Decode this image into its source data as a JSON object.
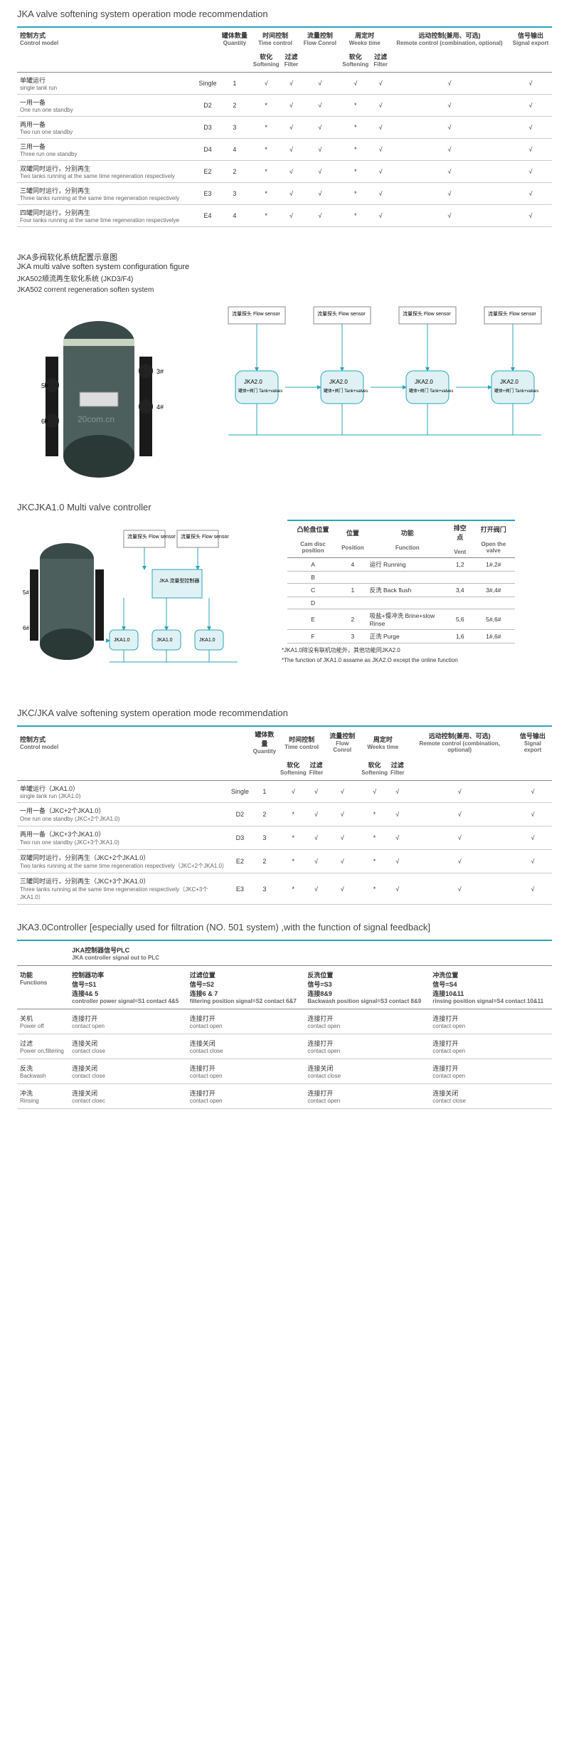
{
  "section1": {
    "title": "JKA valve softening system operation mode recommendation",
    "headers": {
      "control_cn": "控制方式",
      "control_en": "Control model",
      "code": "",
      "qty_cn": "罐体数量",
      "qty_en": "Quantity",
      "time_cn": "时间控制",
      "time_en": "Time control",
      "time_soft_cn": "软化",
      "time_soft_en": "Softening",
      "time_filt_cn": "过滤",
      "time_filt_en": "Filter",
      "flow_cn": "流量控制",
      "flow_en": "Flow Conrol",
      "week_cn": "周定时",
      "week_en": "Weeks time",
      "week_soft_cn": "软化",
      "week_soft_en": "Softening",
      "week_filt_cn": "过滤",
      "week_filt_en": "Filter",
      "remote_cn": "远动控制(兼用、可选)",
      "remote_en": "Remote control (combination, optional)",
      "signal_cn": "信号输出",
      "signal_en": "Signal export"
    },
    "rows": [
      {
        "cn": "单罐运行",
        "en": "single tank run",
        "code": "Single",
        "qty": "1",
        "ts": "√",
        "tf": "√",
        "fc": "√",
        "ws": "√",
        "wf": "√",
        "rc": "√",
        "sig": "√"
      },
      {
        "cn": "一用一备",
        "en": "One run one standby",
        "code": "D2",
        "qty": "2",
        "ts": "*",
        "tf": "√",
        "fc": "√",
        "ws": "*",
        "wf": "√",
        "rc": "√",
        "sig": "√"
      },
      {
        "cn": "两用一备",
        "en": "Two run one standby",
        "code": "D3",
        "qty": "3",
        "ts": "*",
        "tf": "√",
        "fc": "√",
        "ws": "*",
        "wf": "√",
        "rc": "√",
        "sig": "√"
      },
      {
        "cn": "三用一备",
        "en": "Three run one standby",
        "code": "D4",
        "qty": "4",
        "ts": "*",
        "tf": "√",
        "fc": "√",
        "ws": "*",
        "wf": "√",
        "rc": "√",
        "sig": "√"
      },
      {
        "cn": "双罐同时运行，分别再生",
        "en": "Two tanks running at the same time regeneration respectively",
        "code": "E2",
        "qty": "2",
        "ts": "*",
        "tf": "√",
        "fc": "√",
        "ws": "*",
        "wf": "√",
        "rc": "√",
        "sig": "√"
      },
      {
        "cn": "三罐同时运行，分别再生",
        "en": "Three tanks running at the same time regeneration respectively",
        "code": "E3",
        "qty": "3",
        "ts": "*",
        "tf": "√",
        "fc": "√",
        "ws": "*",
        "wf": "√",
        "rc": "√",
        "sig": "√"
      },
      {
        "cn": "四罐同时运行，分别再生",
        "en": "Four tanks running at the same time regeneration respectivelye",
        "code": "E4",
        "qty": "4",
        "ts": "*",
        "tf": "√",
        "fc": "√",
        "ws": "*",
        "wf": "√",
        "rc": "√",
        "sig": "√"
      }
    ]
  },
  "section2": {
    "title_cn": "JKA多阀软化系统配置示意图",
    "title_en": "JKA multi valve soften system configuration figure",
    "sub1_cn": "JKA502顺流再生软化系统 (JKD3/F4)",
    "sub1_en": "JKA502 corrent regeneration soften system",
    "flow_sensor": "流量探头 Flow sensor",
    "watermark": "20com.cn",
    "tank_label": "罐体+阀门 Tank+valves",
    "jka": [
      "JKA2.0",
      "JKA2.0",
      "JKA2.0",
      "JKA2.0"
    ]
  },
  "section3": {
    "title": "JKCJKA1.0 Multi valve  controller",
    "flow_sensor": "流量探头 Flow sensor",
    "ctrl_box": "JKA 流量型控制器",
    "cam_headers": {
      "pos_cn": "凸轮盘位置",
      "pos_en": "Cam disc position",
      "p_cn": "位置",
      "p_en": "Position",
      "fn_cn": "功能",
      "fn_en": "Function",
      "vent_cn": "排空点",
      "vent_en": "Vent",
      "open_cn": "打开阀门",
      "open_en": "Open the valve"
    },
    "cam_rows": [
      {
        "a": "A",
        "p": "4",
        "fn": "运行 Running",
        "v": "1,2",
        "o": "1#,2#"
      },
      {
        "a": "B",
        "p": "",
        "fn": "",
        "v": "",
        "o": ""
      },
      {
        "a": "C",
        "p": "1",
        "fn": "反洗 Back flush",
        "v": "3,4",
        "o": "3#,4#"
      },
      {
        "a": "D",
        "p": "",
        "fn": "",
        "v": "",
        "o": ""
      },
      {
        "a": "E",
        "p": "2",
        "fn": "吸盐+慢冲洗 Brine+slow Rinse",
        "v": "5,6",
        "o": "5#,6#"
      },
      {
        "a": "F",
        "p": "3",
        "fn": "正洗 Purge",
        "v": "1,6",
        "o": "1#,6#"
      }
    ],
    "note1": "*JKA1.0除没有联机功能外，其他功能同JKA2.0",
    "note2": "*The function of JKA1.0 assame as JKA2.O except the online function"
  },
  "section4": {
    "title": "JKC/JKA valve softening system operation mode recommendation",
    "rows": [
      {
        "cn": "单罐运行（JKA1.0）",
        "en": "single tank run (JKA1.0)",
        "code": "Single",
        "qty": "1",
        "ts": "√",
        "tf": "√",
        "fc": "√",
        "ws": "√",
        "wf": "√",
        "rc": "√",
        "sig": "√"
      },
      {
        "cn": "一用一备（JKC+2个JKA1.0）",
        "en": "One run one standby (JKC+2个JKA1.0)",
        "code": "D2",
        "qty": "2",
        "ts": "*",
        "tf": "√",
        "fc": "√",
        "ws": "*",
        "wf": "√",
        "rc": "√",
        "sig": "√"
      },
      {
        "cn": "两用一备（JKC+3个JKA1.0）",
        "en": "Two run one standby (JKC+3个JKA1.0)",
        "code": "D3",
        "qty": "3",
        "ts": "*",
        "tf": "√",
        "fc": "√",
        "ws": "*",
        "wf": "√",
        "rc": "√",
        "sig": "√"
      },
      {
        "cn": "双罐同时运行，分别再生（JKC+2个JKA1.0）",
        "en": "Two tanks running at the same time regeneration respectively（JKC+2个JKA1.0）",
        "code": "E2",
        "qty": "2",
        "ts": "*",
        "tf": "√",
        "fc": "√",
        "ws": "*",
        "wf": "√",
        "rc": "√",
        "sig": "√"
      },
      {
        "cn": "三罐同时运行，分别再生（JKC+3个JKA1.0）",
        "en": "Three tanks running at the same time regeneration respectively（JKC+3个JKA1.0）",
        "code": "E3",
        "qty": "3",
        "ts": "*",
        "tf": "√",
        "fc": "√",
        "ws": "*",
        "wf": "√",
        "rc": "√",
        "sig": "√"
      }
    ]
  },
  "section5": {
    "title": "JKA3.0Controller [especially used for filtration (NO. 501 system) ,with the function of signal feedback]",
    "plc_header_cn": "JKA控制器信号PLC",
    "plc_header_en": "JKA controller signal out to PLC",
    "cols": [
      {
        "cn": "控制器功率",
        "sub": "信号=S1",
        "sub2": "连接4& 5",
        "en": "controller power signal=S1 contact 4&5"
      },
      {
        "cn": "过滤位置",
        "sub": "信号=S2",
        "sub2": "连接6 & 7",
        "en": "filtering position signal=S2 contact 6&7"
      },
      {
        "cn": "反洗位置",
        "sub": "信号=S3",
        "sub2": "连接8&9",
        "en": "Backwash position signal=S3 contact 8&9"
      },
      {
        "cn": "冲洗位置",
        "sub": "信号=S4",
        "sub2": "连接10&11",
        "en": "rinsing position signal=S4 contact 10&11"
      }
    ],
    "func_cn": "功能",
    "func_en": "Functions",
    "rows": [
      {
        "cn": "关机",
        "en": "Power off",
        "v": [
          "连接打开 contact open",
          "连接打开 contact open",
          "连接打开 contact open",
          "连接打开 contact open"
        ]
      },
      {
        "cn": "过滤",
        "en": "Power on,filtering",
        "v": [
          "连接关闭 contact close",
          "连接关闭 contact close",
          "连接打开 contact open",
          "连接打开 contact open"
        ]
      },
      {
        "cn": "反洗",
        "en": "Backwash",
        "v": [
          "连接关闭 contact close",
          "连接打开 contact open",
          "连接关闭 contact close",
          "连接打开 contact open"
        ]
      },
      {
        "cn": "冲洗",
        "en": "Rinsing",
        "v": [
          "连接关闭 contact cloec",
          "连接打开 contact open",
          "连接打开 contact open",
          "连接关闭 contact close"
        ]
      }
    ]
  },
  "colors": {
    "accent": "#2aa5b8",
    "diagram_line": "#2aa5b8",
    "tank_fill": "#dff1f4"
  }
}
